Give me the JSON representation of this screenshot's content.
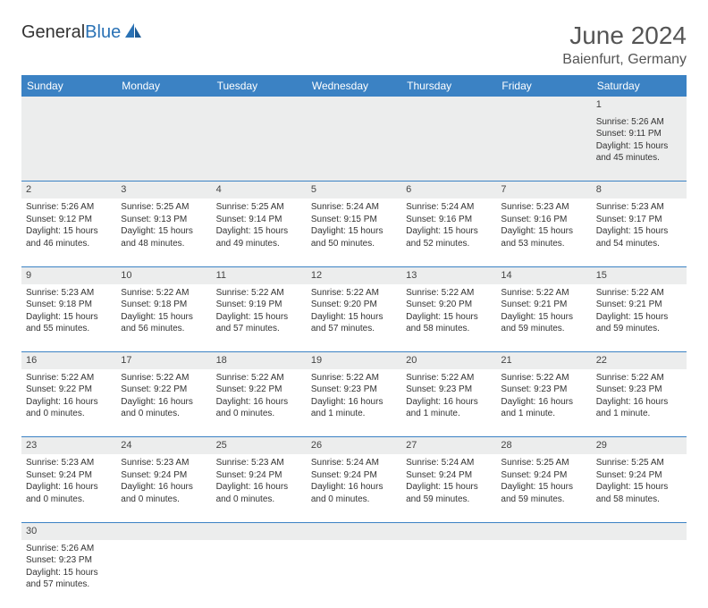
{
  "logo": {
    "word1": "General",
    "word2": "Blue"
  },
  "title": "June 2024",
  "location": "Baienfurt, Germany",
  "colors": {
    "header_bg": "#3b82c4",
    "header_text": "#ffffff",
    "daynum_bg": "#eceded",
    "cell_border": "#3b82c4",
    "text": "#333333",
    "title_text": "#555555",
    "logo_blue": "#2a72b5"
  },
  "fonts": {
    "title_size": 28,
    "location_size": 16,
    "header_size": 12,
    "cell_size": 10,
    "daynum_size": 11
  },
  "daynames": [
    "Sunday",
    "Monday",
    "Tuesday",
    "Wednesday",
    "Thursday",
    "Friday",
    "Saturday"
  ],
  "weeks": [
    [
      null,
      null,
      null,
      null,
      null,
      null,
      {
        "n": "1",
        "sr": "Sunrise: 5:26 AM",
        "ss": "Sunset: 9:11 PM",
        "dl": "Daylight: 15 hours and 45 minutes."
      }
    ],
    [
      {
        "n": "2",
        "sr": "Sunrise: 5:26 AM",
        "ss": "Sunset: 9:12 PM",
        "dl": "Daylight: 15 hours and 46 minutes."
      },
      {
        "n": "3",
        "sr": "Sunrise: 5:25 AM",
        "ss": "Sunset: 9:13 PM",
        "dl": "Daylight: 15 hours and 48 minutes."
      },
      {
        "n": "4",
        "sr": "Sunrise: 5:25 AM",
        "ss": "Sunset: 9:14 PM",
        "dl": "Daylight: 15 hours and 49 minutes."
      },
      {
        "n": "5",
        "sr": "Sunrise: 5:24 AM",
        "ss": "Sunset: 9:15 PM",
        "dl": "Daylight: 15 hours and 50 minutes."
      },
      {
        "n": "6",
        "sr": "Sunrise: 5:24 AM",
        "ss": "Sunset: 9:16 PM",
        "dl": "Daylight: 15 hours and 52 minutes."
      },
      {
        "n": "7",
        "sr": "Sunrise: 5:23 AM",
        "ss": "Sunset: 9:16 PM",
        "dl": "Daylight: 15 hours and 53 minutes."
      },
      {
        "n": "8",
        "sr": "Sunrise: 5:23 AM",
        "ss": "Sunset: 9:17 PM",
        "dl": "Daylight: 15 hours and 54 minutes."
      }
    ],
    [
      {
        "n": "9",
        "sr": "Sunrise: 5:23 AM",
        "ss": "Sunset: 9:18 PM",
        "dl": "Daylight: 15 hours and 55 minutes."
      },
      {
        "n": "10",
        "sr": "Sunrise: 5:22 AM",
        "ss": "Sunset: 9:18 PM",
        "dl": "Daylight: 15 hours and 56 minutes."
      },
      {
        "n": "11",
        "sr": "Sunrise: 5:22 AM",
        "ss": "Sunset: 9:19 PM",
        "dl": "Daylight: 15 hours and 57 minutes."
      },
      {
        "n": "12",
        "sr": "Sunrise: 5:22 AM",
        "ss": "Sunset: 9:20 PM",
        "dl": "Daylight: 15 hours and 57 minutes."
      },
      {
        "n": "13",
        "sr": "Sunrise: 5:22 AM",
        "ss": "Sunset: 9:20 PM",
        "dl": "Daylight: 15 hours and 58 minutes."
      },
      {
        "n": "14",
        "sr": "Sunrise: 5:22 AM",
        "ss": "Sunset: 9:21 PM",
        "dl": "Daylight: 15 hours and 59 minutes."
      },
      {
        "n": "15",
        "sr": "Sunrise: 5:22 AM",
        "ss": "Sunset: 9:21 PM",
        "dl": "Daylight: 15 hours and 59 minutes."
      }
    ],
    [
      {
        "n": "16",
        "sr": "Sunrise: 5:22 AM",
        "ss": "Sunset: 9:22 PM",
        "dl": "Daylight: 16 hours and 0 minutes."
      },
      {
        "n": "17",
        "sr": "Sunrise: 5:22 AM",
        "ss": "Sunset: 9:22 PM",
        "dl": "Daylight: 16 hours and 0 minutes."
      },
      {
        "n": "18",
        "sr": "Sunrise: 5:22 AM",
        "ss": "Sunset: 9:22 PM",
        "dl": "Daylight: 16 hours and 0 minutes."
      },
      {
        "n": "19",
        "sr": "Sunrise: 5:22 AM",
        "ss": "Sunset: 9:23 PM",
        "dl": "Daylight: 16 hours and 1 minute."
      },
      {
        "n": "20",
        "sr": "Sunrise: 5:22 AM",
        "ss": "Sunset: 9:23 PM",
        "dl": "Daylight: 16 hours and 1 minute."
      },
      {
        "n": "21",
        "sr": "Sunrise: 5:22 AM",
        "ss": "Sunset: 9:23 PM",
        "dl": "Daylight: 16 hours and 1 minute."
      },
      {
        "n": "22",
        "sr": "Sunrise: 5:22 AM",
        "ss": "Sunset: 9:23 PM",
        "dl": "Daylight: 16 hours and 1 minute."
      }
    ],
    [
      {
        "n": "23",
        "sr": "Sunrise: 5:23 AM",
        "ss": "Sunset: 9:24 PM",
        "dl": "Daylight: 16 hours and 0 minutes."
      },
      {
        "n": "24",
        "sr": "Sunrise: 5:23 AM",
        "ss": "Sunset: 9:24 PM",
        "dl": "Daylight: 16 hours and 0 minutes."
      },
      {
        "n": "25",
        "sr": "Sunrise: 5:23 AM",
        "ss": "Sunset: 9:24 PM",
        "dl": "Daylight: 16 hours and 0 minutes."
      },
      {
        "n": "26",
        "sr": "Sunrise: 5:24 AM",
        "ss": "Sunset: 9:24 PM",
        "dl": "Daylight: 16 hours and 0 minutes."
      },
      {
        "n": "27",
        "sr": "Sunrise: 5:24 AM",
        "ss": "Sunset: 9:24 PM",
        "dl": "Daylight: 15 hours and 59 minutes."
      },
      {
        "n": "28",
        "sr": "Sunrise: 5:25 AM",
        "ss": "Sunset: 9:24 PM",
        "dl": "Daylight: 15 hours and 59 minutes."
      },
      {
        "n": "29",
        "sr": "Sunrise: 5:25 AM",
        "ss": "Sunset: 9:24 PM",
        "dl": "Daylight: 15 hours and 58 minutes."
      }
    ],
    [
      {
        "n": "30",
        "sr": "Sunrise: 5:26 AM",
        "ss": "Sunset: 9:23 PM",
        "dl": "Daylight: 15 hours and 57 minutes."
      },
      null,
      null,
      null,
      null,
      null,
      null
    ]
  ]
}
